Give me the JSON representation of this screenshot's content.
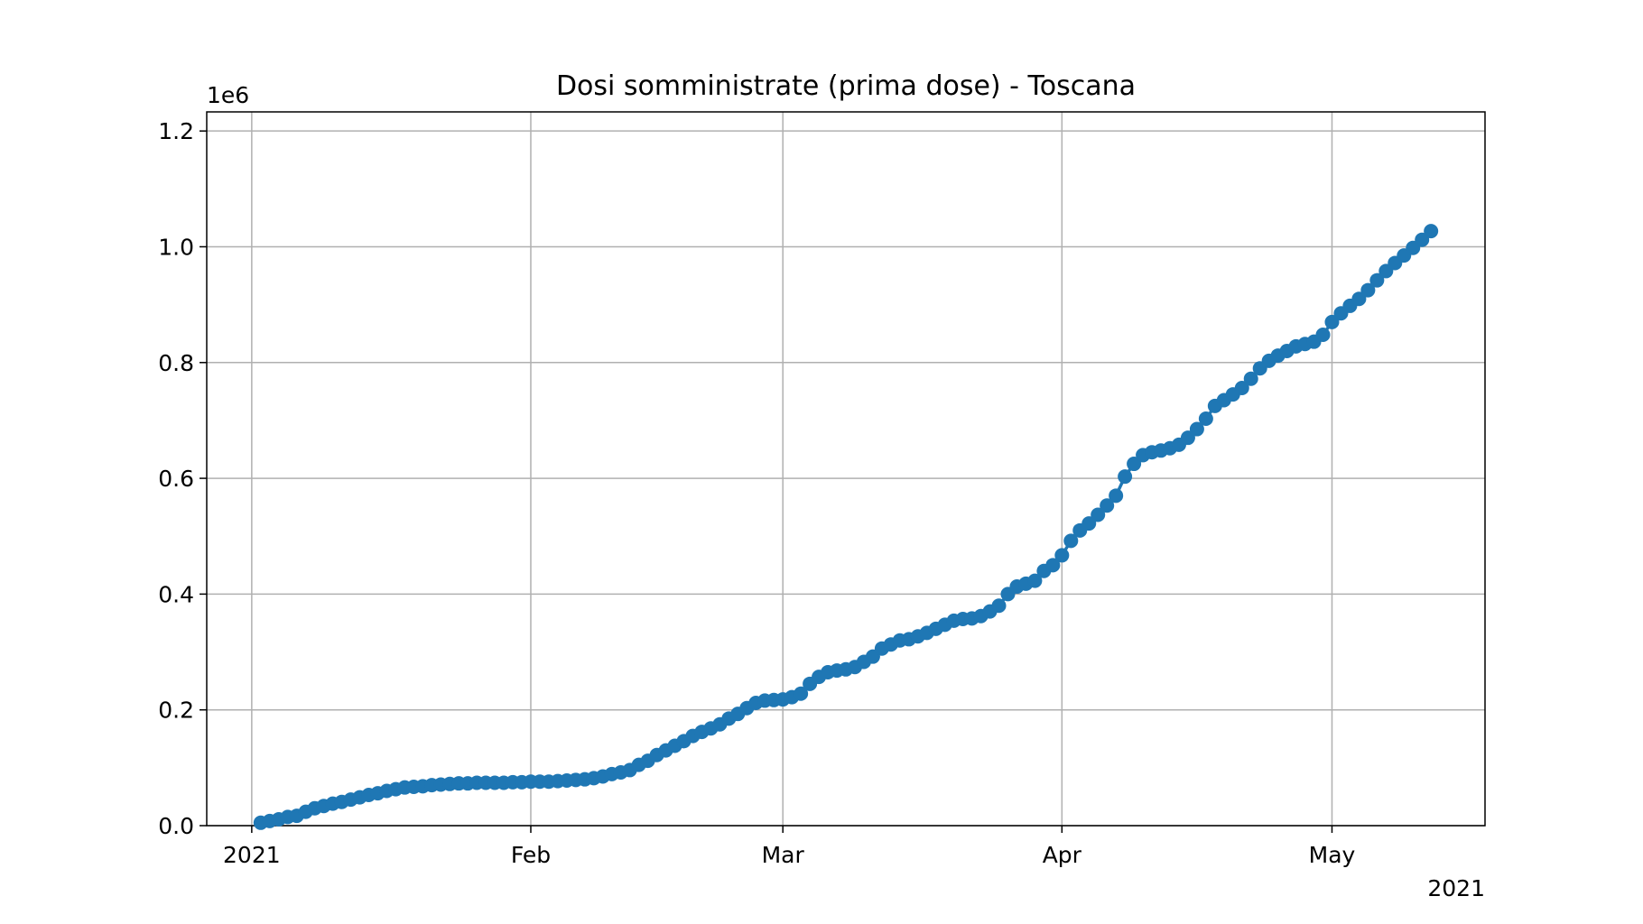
{
  "chart_data": {
    "type": "line",
    "title": "Dosi somministrate (prima dose) - Toscana",
    "x": [
      "2021-01-02",
      "2021-01-03",
      "2021-01-04",
      "2021-01-05",
      "2021-01-06",
      "2021-01-07",
      "2021-01-08",
      "2021-01-09",
      "2021-01-10",
      "2021-01-11",
      "2021-01-12",
      "2021-01-13",
      "2021-01-14",
      "2021-01-15",
      "2021-01-16",
      "2021-01-17",
      "2021-01-18",
      "2021-01-19",
      "2021-01-20",
      "2021-01-21",
      "2021-01-22",
      "2021-01-23",
      "2021-01-24",
      "2021-01-25",
      "2021-01-26",
      "2021-01-27",
      "2021-01-28",
      "2021-01-29",
      "2021-01-30",
      "2021-01-31",
      "2021-02-01",
      "2021-02-02",
      "2021-02-03",
      "2021-02-04",
      "2021-02-05",
      "2021-02-06",
      "2021-02-07",
      "2021-02-08",
      "2021-02-09",
      "2021-02-10",
      "2021-02-11",
      "2021-02-12",
      "2021-02-13",
      "2021-02-14",
      "2021-02-15",
      "2021-02-16",
      "2021-02-17",
      "2021-02-18",
      "2021-02-19",
      "2021-02-20",
      "2021-02-21",
      "2021-02-22",
      "2021-02-23",
      "2021-02-24",
      "2021-02-25",
      "2021-02-26",
      "2021-02-27",
      "2021-02-28",
      "2021-03-01",
      "2021-03-02",
      "2021-03-03",
      "2021-03-04",
      "2021-03-05",
      "2021-03-06",
      "2021-03-07",
      "2021-03-08",
      "2021-03-09",
      "2021-03-10",
      "2021-03-11",
      "2021-03-12",
      "2021-03-13",
      "2021-03-14",
      "2021-03-15",
      "2021-03-16",
      "2021-03-17",
      "2021-03-18",
      "2021-03-19",
      "2021-03-20",
      "2021-03-21",
      "2021-03-22",
      "2021-03-23",
      "2021-03-24",
      "2021-03-25",
      "2021-03-26",
      "2021-03-27",
      "2021-03-28",
      "2021-03-29",
      "2021-03-30",
      "2021-03-31",
      "2021-04-01",
      "2021-04-02",
      "2021-04-03",
      "2021-04-04",
      "2021-04-05",
      "2021-04-06",
      "2021-04-07",
      "2021-04-08",
      "2021-04-09",
      "2021-04-10",
      "2021-04-11",
      "2021-04-12",
      "2021-04-13",
      "2021-04-14",
      "2021-04-15",
      "2021-04-16",
      "2021-04-17",
      "2021-04-18",
      "2021-04-19",
      "2021-04-20",
      "2021-04-21",
      "2021-04-22",
      "2021-04-23",
      "2021-04-24",
      "2021-04-25",
      "2021-04-26",
      "2021-04-27",
      "2021-04-28",
      "2021-04-29",
      "2021-04-30",
      "2021-05-01",
      "2021-05-02",
      "2021-05-03",
      "2021-05-04",
      "2021-05-05",
      "2021-05-06",
      "2021-05-07",
      "2021-05-08",
      "2021-05-09",
      "2021-05-10",
      "2021-05-11",
      "2021-05-12"
    ],
    "series": [
      {
        "color": "#1f77b4",
        "values": [
          5000,
          8000,
          11000,
          15000,
          17000,
          24000,
          30000,
          34000,
          38000,
          41000,
          45000,
          49000,
          53000,
          56000,
          60000,
          63000,
          66000,
          67000,
          68000,
          70000,
          71000,
          72000,
          73000,
          73000,
          74000,
          74000,
          74000,
          74000,
          75000,
          75000,
          76000,
          76000,
          76000,
          77000,
          78000,
          79000,
          80000,
          82000,
          85000,
          89000,
          92000,
          96000,
          105000,
          112000,
          122000,
          130000,
          138000,
          146000,
          155000,
          162000,
          168000,
          175000,
          185000,
          193000,
          203000,
          212000,
          216000,
          217000,
          218000,
          222000,
          228000,
          245000,
          257000,
          265000,
          268000,
          270000,
          274000,
          283000,
          292000,
          306000,
          313000,
          320000,
          322000,
          327000,
          333000,
          340000,
          347000,
          354000,
          357000,
          358000,
          362000,
          370000,
          380000,
          400000,
          413000,
          418000,
          423000,
          440000,
          450000,
          467000,
          492000,
          510000,
          522000,
          537000,
          553000,
          570000,
          603000,
          625000,
          640000,
          645000,
          648000,
          652000,
          658000,
          670000,
          685000,
          703000,
          725000,
          735000,
          745000,
          756000,
          772000,
          790000,
          803000,
          812000,
          820000,
          828000,
          832000,
          836000,
          848000,
          870000,
          885000,
          898000,
          910000,
          925000,
          942000,
          958000,
          972000,
          985000,
          998000,
          1012000,
          1027000
        ]
      }
    ],
    "xlim": [
      "2020-12-27",
      "2021-05-18"
    ],
    "xticks": [
      {
        "value": "2021-01-01",
        "label": "2021"
      },
      {
        "value": "2021-02-01",
        "label": "Feb"
      },
      {
        "value": "2021-03-01",
        "label": "Mar"
      },
      {
        "value": "2021-04-01",
        "label": "Apr"
      },
      {
        "value": "2021-05-01",
        "label": "May"
      }
    ],
    "x_offset_label": "2021",
    "ylim": [
      0,
      1233000
    ],
    "yticks": [
      {
        "value": 0,
        "label": "0.0"
      },
      {
        "value": 200000,
        "label": "0.2"
      },
      {
        "value": 400000,
        "label": "0.4"
      },
      {
        "value": 600000,
        "label": "0.6"
      },
      {
        "value": 800000,
        "label": "0.8"
      },
      {
        "value": 1000000,
        "label": "1.0"
      },
      {
        "value": 1200000,
        "label": "1.2"
      }
    ],
    "y_offset_label": "1e6",
    "grid": true
  }
}
